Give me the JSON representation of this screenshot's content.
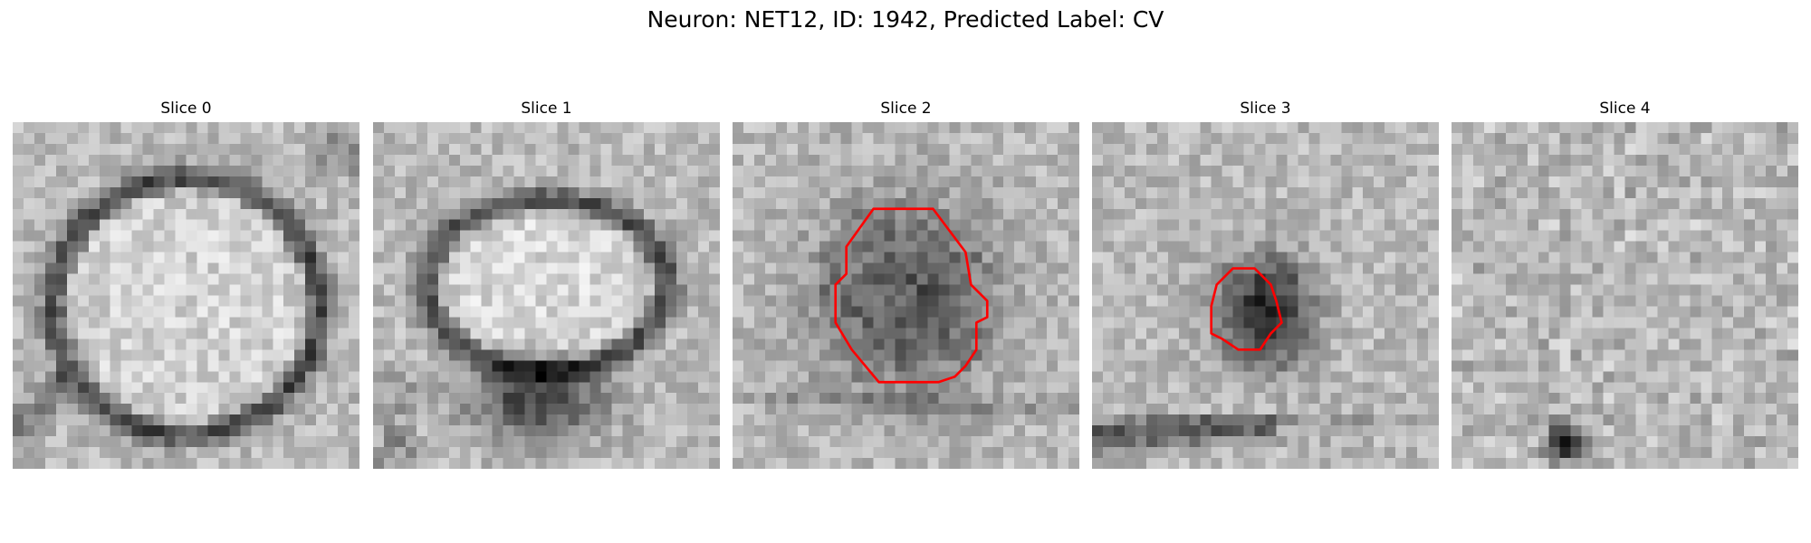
{
  "figure": {
    "suptitle": "Neuron: NET12, ID: 1942, Predicted Label: CV"
  },
  "slices": [
    {
      "title": "Slice 0",
      "pattern": "ring-large-light-center",
      "has_contour": false
    },
    {
      "title": "Slice 1",
      "pattern": "oval-light-center-dark-bottom",
      "has_contour": false
    },
    {
      "title": "Slice 2",
      "pattern": "dark-blob-large",
      "has_contour": true,
      "contour_color": "#ff0000"
    },
    {
      "title": "Slice 3",
      "pattern": "dark-blob-small",
      "has_contour": true,
      "contour_color": "#ff0000"
    },
    {
      "title": "Slice 4",
      "pattern": "noise-dark-spot-bottom",
      "has_contour": false
    }
  ],
  "colors": {
    "background": "#ffffff",
    "contour": "#ff0000",
    "colormap": "grayscale"
  }
}
